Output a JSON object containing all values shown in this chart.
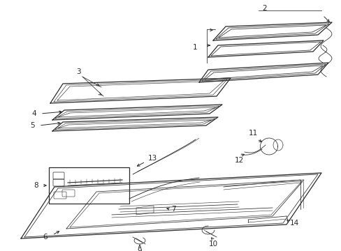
{
  "bg_color": "#ffffff",
  "line_color": "#2a2a2a",
  "label_color": "#000000",
  "fig_w": 4.89,
  "fig_h": 3.6,
  "dpi": 100
}
